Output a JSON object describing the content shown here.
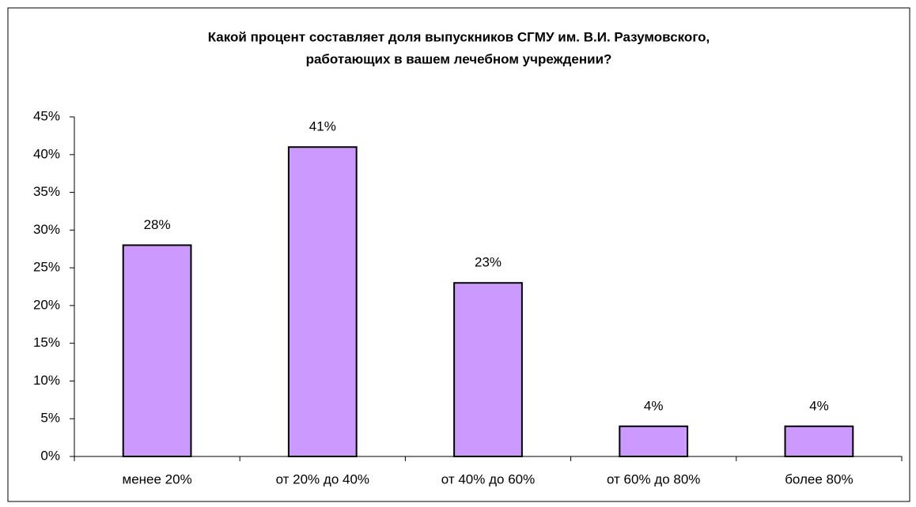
{
  "chart_data": {
    "type": "bar",
    "title": [
      "Какой процент составляет доля выпускников СГМУ им. В.И. Разумовского,",
      "работающих в вашем лечебном учреждении?"
    ],
    "categories": [
      "менее 20%",
      "от 20% до 40%",
      "от 40% до 60%",
      "от 60% до 80%",
      "более 80%"
    ],
    "values": [
      28,
      41,
      23,
      4,
      4
    ],
    "value_labels": [
      "28%",
      "41%",
      "23%",
      "4%",
      "4%"
    ],
    "color": "#cc99ff",
    "ylim": [
      0,
      45
    ],
    "yticks": [
      {
        "value": 0,
        "label": "0%"
      },
      {
        "value": 5,
        "label": "5%"
      },
      {
        "value": 10,
        "label": "10%"
      },
      {
        "value": 15,
        "label": "15%"
      },
      {
        "value": 20,
        "label": "20%"
      },
      {
        "value": 25,
        "label": "25%"
      },
      {
        "value": 30,
        "label": "30%"
      },
      {
        "value": 35,
        "label": "35%"
      },
      {
        "value": 40,
        "label": "40%"
      },
      {
        "value": 45,
        "label": "45%"
      }
    ],
    "grid": false
  }
}
